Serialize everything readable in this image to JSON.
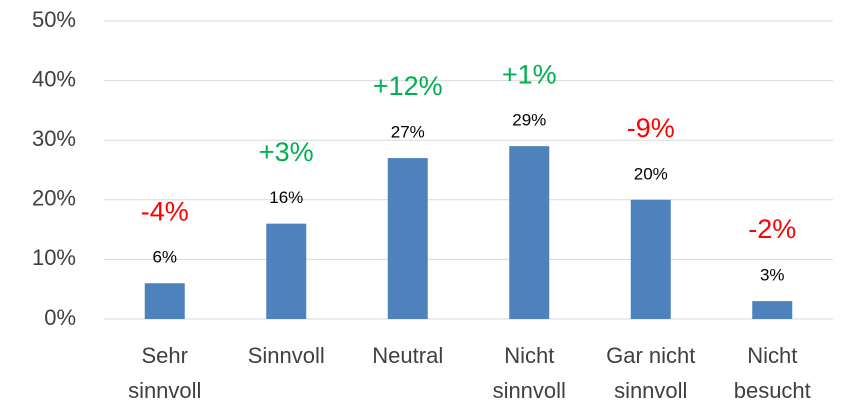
{
  "chart_data": {
    "type": "bar",
    "categories": [
      [
        "Sehr",
        "sinnvoll"
      ],
      [
        "Sinnvoll"
      ],
      [
        "Neutral"
      ],
      [
        "Nicht",
        "sinnvoll"
      ],
      [
        "Gar nicht",
        "sinnvoll"
      ],
      [
        "Nicht",
        "besucht"
      ]
    ],
    "values": [
      6,
      16,
      27,
      29,
      20,
      3
    ],
    "value_labels": [
      "6%",
      "16%",
      "27%",
      "29%",
      "20%",
      "3%"
    ],
    "changes": {
      "values": [
        -4,
        3,
        12,
        1,
        -9,
        -2
      ],
      "value_labels": [
        "-4%",
        "+3%",
        "+12%",
        "+1%",
        "-9%",
        "-2%"
      ],
      "colors": {
        "positive": "#00b050",
        "negative": "#ff0000"
      }
    },
    "color": "#4f81bd",
    "ylim": [
      0,
      50
    ],
    "yticks": [
      {
        "value": 0,
        "label": "0%"
      },
      {
        "value": 10,
        "label": "10%"
      },
      {
        "value": 20,
        "label": "20%"
      },
      {
        "value": 30,
        "label": "30%"
      },
      {
        "value": 40,
        "label": "40%"
      },
      {
        "value": 50,
        "label": "50%"
      }
    ],
    "grid": true
  }
}
